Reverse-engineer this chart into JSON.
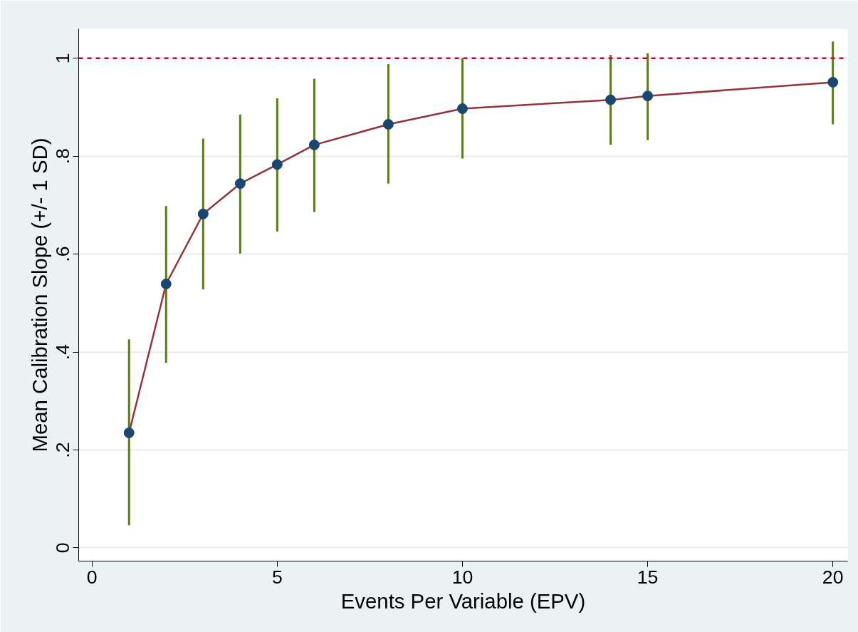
{
  "chart_data": {
    "type": "line",
    "xlabel": "Events Per Variable (EPV)",
    "ylabel": "Mean Calibration Slope (+/- 1 SD)",
    "x": [
      1,
      2,
      3,
      4,
      5,
      6,
      8,
      10,
      14,
      15,
      20
    ],
    "series": [
      {
        "color": "#90353b",
        "values": [
          0.235,
          0.539,
          0.682,
          0.744,
          0.783,
          0.823,
          0.865,
          0.897,
          0.915,
          0.923,
          0.951
        ],
        "errors": [
          [
            0.046,
            0.426
          ],
          [
            0.378,
            0.698
          ],
          [
            0.528,
            0.836
          ],
          [
            0.601,
            0.885
          ],
          [
            0.646,
            0.918
          ],
          [
            0.686,
            0.958
          ],
          [
            0.744,
            0.988
          ],
          [
            0.795,
            1.0
          ],
          [
            0.823,
            1.007
          ],
          [
            0.833,
            1.01
          ],
          [
            0.865,
            1.034
          ]
        ]
      }
    ],
    "marker": "circle",
    "line_style": "solid",
    "xlim": [
      -0.36,
      20.4
    ],
    "xticks": [
      0,
      5,
      10,
      15,
      20
    ],
    "ylim": [
      -0.027,
      1.06
    ],
    "yticks": [
      {
        "value": 0,
        "label": "0"
      },
      {
        "value": 0.2,
        "label": ".2"
      },
      {
        "value": 0.4,
        "label": ".4"
      },
      {
        "value": 0.6,
        "label": ".6"
      },
      {
        "value": 0.8,
        "label": ".8"
      },
      {
        "value": 1,
        "label": "1"
      }
    ],
    "grid": "y",
    "ref_lines": [
      {
        "axis": "y",
        "value": 1,
        "color": "#c10534",
        "line_style": "dashed"
      }
    ]
  }
}
